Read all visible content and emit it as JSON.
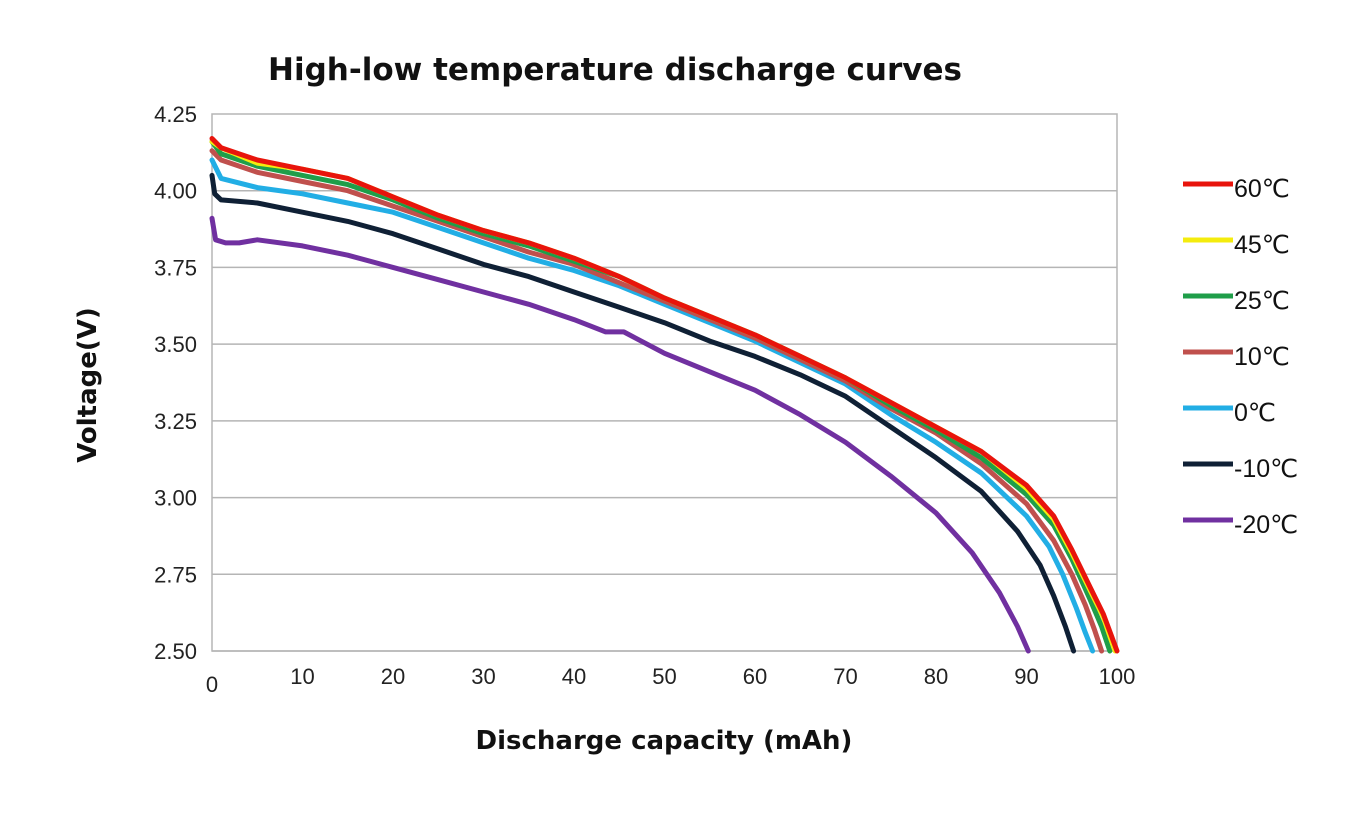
{
  "chart_data": {
    "type": "line",
    "title": "High-low temperature discharge curves",
    "xlabel": "Discharge capacity (mAh)",
    "ylabel": "Voltage(V)",
    "xlim": [
      0,
      100
    ],
    "ylim": [
      2.5,
      4.25
    ],
    "xticks": [
      "0",
      "10",
      "20",
      "30",
      "40",
      "50",
      "60",
      "70",
      "80",
      "90",
      "100"
    ],
    "yticks": [
      "4.25",
      "4.00",
      "3.75",
      "3.50",
      "3.25",
      "3.00",
      "2.75",
      "2.50"
    ],
    "grid": "horizontal",
    "legend_position": "right",
    "series": [
      {
        "name": "60℃",
        "color": "#e8140c",
        "x": [
          0,
          1,
          5,
          10,
          15,
          20,
          25,
          30,
          35,
          40,
          45,
          50,
          55,
          60,
          65,
          70,
          75,
          80,
          85,
          90,
          93,
          95,
          97,
          98.5,
          99.5,
          100
        ],
        "y": [
          4.17,
          4.14,
          4.1,
          4.07,
          4.04,
          3.98,
          3.92,
          3.87,
          3.83,
          3.78,
          3.72,
          3.65,
          3.59,
          3.53,
          3.46,
          3.39,
          3.31,
          3.23,
          3.15,
          3.04,
          2.94,
          2.83,
          2.71,
          2.62,
          2.54,
          2.5
        ]
      },
      {
        "name": "45℃",
        "color": "#f4ec0e",
        "x": [
          0,
          1,
          5,
          10,
          15,
          20,
          25,
          30,
          35,
          40,
          45,
          50,
          55,
          60,
          65,
          70,
          75,
          80,
          85,
          90,
          93,
          95,
          97,
          98.5,
          99.3,
          99.8
        ],
        "y": [
          4.16,
          4.14,
          4.09,
          4.07,
          4.04,
          3.98,
          3.92,
          3.87,
          3.83,
          3.78,
          3.72,
          3.65,
          3.59,
          3.53,
          3.46,
          3.39,
          3.31,
          3.23,
          3.15,
          3.03,
          2.93,
          2.82,
          2.7,
          2.61,
          2.54,
          2.5
        ]
      },
      {
        "name": "25℃",
        "color": "#1f9e49",
        "x": [
          0,
          1,
          5,
          10,
          15,
          20,
          25,
          30,
          35,
          40,
          45,
          50,
          55,
          60,
          65,
          70,
          75,
          80,
          85,
          90,
          93,
          95,
          97,
          98.3,
          99.2
        ],
        "y": [
          4.16,
          4.12,
          4.08,
          4.05,
          4.02,
          3.97,
          3.91,
          3.86,
          3.82,
          3.77,
          3.72,
          3.65,
          3.59,
          3.53,
          3.46,
          3.39,
          3.3,
          3.22,
          3.13,
          3.01,
          2.91,
          2.8,
          2.67,
          2.58,
          2.5
        ]
      },
      {
        "name": "10℃",
        "color": "#c0504d",
        "x": [
          0,
          1,
          5,
          10,
          15,
          20,
          25,
          30,
          35,
          40,
          45,
          50,
          55,
          60,
          65,
          70,
          75,
          80,
          85,
          90,
          93,
          95,
          96.5,
          97.5,
          98.3
        ],
        "y": [
          4.13,
          4.1,
          4.06,
          4.03,
          4.0,
          3.95,
          3.9,
          3.85,
          3.8,
          3.76,
          3.7,
          3.64,
          3.58,
          3.52,
          3.45,
          3.38,
          3.29,
          3.21,
          3.11,
          2.98,
          2.86,
          2.75,
          2.65,
          2.57,
          2.5
        ]
      },
      {
        "name": "0℃",
        "color": "#22aee5",
        "x": [
          0,
          1,
          5,
          10,
          15,
          20,
          25,
          30,
          35,
          40,
          45,
          50,
          55,
          60,
          65,
          70,
          75,
          80,
          85,
          90,
          92.5,
          94,
          95.5,
          96.5,
          97.3
        ],
        "y": [
          4.1,
          4.04,
          4.01,
          3.99,
          3.96,
          3.93,
          3.88,
          3.83,
          3.78,
          3.74,
          3.69,
          3.63,
          3.57,
          3.51,
          3.44,
          3.37,
          3.27,
          3.18,
          3.08,
          2.94,
          2.84,
          2.75,
          2.64,
          2.56,
          2.5
        ]
      },
      {
        "name": "-10℃",
        "color": "#0f2035",
        "x": [
          0,
          0.3,
          1,
          5,
          10,
          15,
          20,
          25,
          30,
          35,
          40,
          45,
          50,
          55,
          60,
          65,
          70,
          75,
          80,
          85,
          89,
          91.5,
          93,
          94.3,
          95.2
        ],
        "y": [
          4.05,
          3.99,
          3.97,
          3.96,
          3.93,
          3.9,
          3.86,
          3.81,
          3.76,
          3.72,
          3.67,
          3.62,
          3.57,
          3.51,
          3.46,
          3.4,
          3.33,
          3.23,
          3.13,
          3.02,
          2.89,
          2.78,
          2.68,
          2.58,
          2.5
        ]
      },
      {
        "name": "-20℃",
        "color": "#7030a0",
        "x": [
          0,
          0.4,
          1.5,
          3,
          5,
          10,
          15,
          20,
          25,
          30,
          35,
          40,
          43.5,
          44.5,
          45.5,
          50,
          55,
          60,
          65,
          70,
          75,
          80,
          84,
          87,
          89,
          90.2
        ],
        "y": [
          3.91,
          3.84,
          3.83,
          3.83,
          3.84,
          3.82,
          3.79,
          3.75,
          3.71,
          3.67,
          3.63,
          3.58,
          3.54,
          3.54,
          3.54,
          3.47,
          3.41,
          3.35,
          3.27,
          3.18,
          3.07,
          2.95,
          2.82,
          2.69,
          2.58,
          2.5
        ]
      }
    ]
  }
}
